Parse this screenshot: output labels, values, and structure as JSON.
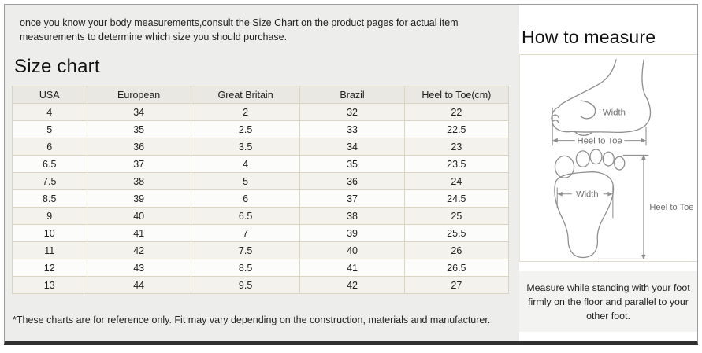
{
  "colors": {
    "panel_left_bg": "#ededeb",
    "panel_right_bg": "#ffffff",
    "table_border": "#d9d5c2",
    "header_row_bg": "#e9e8e3",
    "row_odd_bg": "#f3f2ed",
    "row_even_bg": "#fcfcfb",
    "bottom_border": "#303030",
    "diagram_stroke": "#8f8f8f"
  },
  "intro": {
    "text": "once you know your body measurements,consult the Size Chart on the product pages for actual item measurements to determine which size you should purchase."
  },
  "size_chart": {
    "title": "Size chart",
    "columns": [
      "USA",
      "European",
      "Great Britain",
      "Brazil",
      "Heel to Toe(cm)"
    ],
    "rows": [
      [
        "4",
        "34",
        "2",
        "32",
        "22"
      ],
      [
        "5",
        "35",
        "2.5",
        "33",
        "22.5"
      ],
      [
        "6",
        "36",
        "3.5",
        "34",
        "23"
      ],
      [
        "6.5",
        "37",
        "4",
        "35",
        "23.5"
      ],
      [
        "7.5",
        "38",
        "5",
        "36",
        "24"
      ],
      [
        "8.5",
        "39",
        "6",
        "37",
        "24.5"
      ],
      [
        "9",
        "40",
        "6.5",
        "38",
        "25"
      ],
      [
        "10",
        "41",
        "7",
        "39",
        "25.5"
      ],
      [
        "11",
        "42",
        "7.5",
        "40",
        "26"
      ],
      [
        "12",
        "43",
        "8.5",
        "41",
        "26.5"
      ],
      [
        "13",
        "44",
        "9.5",
        "42",
        "27"
      ]
    ],
    "footnote": "*These charts are for reference only. Fit may vary depending on the construction, materials and manufacturer."
  },
  "how_to_measure": {
    "title": "How to measure",
    "side_view": {
      "width_label": "Width",
      "length_label": "Heel to Toe"
    },
    "top_view": {
      "width_label": "Width",
      "length_label": "Heel to Toe"
    },
    "caption": "Measure while standing with your foot firmly on the floor and parallel to your other foot."
  }
}
